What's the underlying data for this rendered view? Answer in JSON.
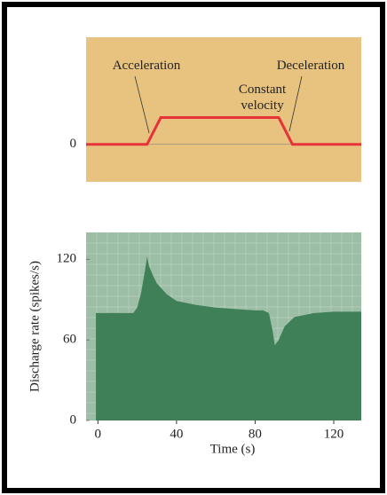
{
  "chart_data": [
    {
      "type": "line",
      "x": [
        -6,
        25,
        32,
        92,
        99,
        134
      ],
      "series": [
        {
          "color": "#e63339",
          "values": [
            0,
            0,
            1,
            1,
            0,
            0
          ]
        }
      ],
      "xlim": [
        -6,
        134
      ],
      "ylim": [
        -1.4,
        4
      ],
      "yticks": [
        0
      ],
      "background": "#e8c37f",
      "annotations": [
        {
          "text": [
            "Acceleration"
          ],
          "x": 28
        },
        {
          "text": [
            "Constant",
            "velocity"
          ],
          "x": 62
        },
        {
          "text": [
            "Deceleration"
          ],
          "x": 96
        }
      ]
    },
    {
      "type": "area",
      "x": [
        -1,
        0,
        10,
        18,
        20,
        22,
        24,
        25,
        26,
        28,
        30,
        35,
        40,
        50,
        60,
        70,
        80,
        84,
        87,
        89,
        90,
        92,
        95,
        100,
        110,
        120,
        134
      ],
      "series": [
        {
          "color": "#3f8058",
          "values": [
            80,
            80,
            80,
            80,
            84,
            95,
            112,
            122,
            115,
            108,
            102,
            94,
            89,
            86,
            84,
            83,
            82,
            82,
            80,
            66,
            56,
            60,
            70,
            77,
            80,
            81,
            81
          ]
        }
      ],
      "xlim": [
        -6,
        134
      ],
      "ylim": [
        0,
        140
      ],
      "xticks": [
        0,
        40,
        80,
        120
      ],
      "yticks": [
        0,
        60,
        120
      ],
      "grid": true,
      "background": "#9dbea6",
      "xlabel": "Time (s)",
      "ylabel": "Discharge rate (spikes/s)"
    }
  ]
}
